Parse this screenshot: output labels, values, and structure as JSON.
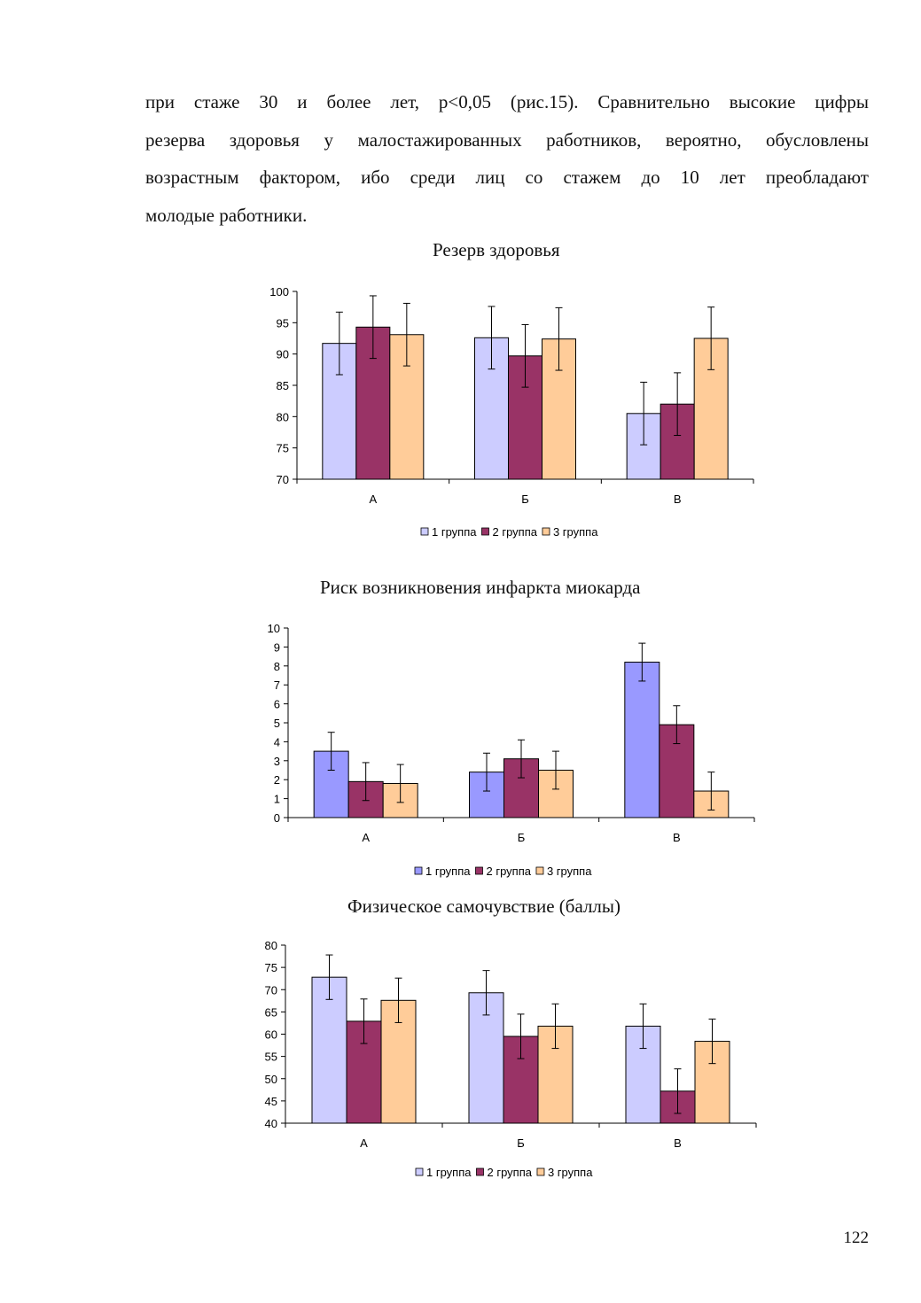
{
  "text": {
    "lines": [
      "при стаже 30 и более лет, р<0,05 (рис.15). Сравнительно высокие цифры",
      "резерва здоровья у малостажированных работников, вероятно, обусловлены",
      "возрастным фактором, ибо среди лиц со стажем до 10 лет преобладают",
      "молодые работники."
    ]
  },
  "page_number": "122",
  "colors": {
    "group1_light": "#ccccff",
    "group1_blue": "#9999ff",
    "group2": "#993366",
    "group3": "#ffcc99"
  },
  "chart_data": [
    {
      "type": "bar",
      "title": "Резерв здоровья",
      "categories": [
        "А",
        "Б",
        "В"
      ],
      "ylim": [
        70,
        100
      ],
      "ytick_step": 5,
      "yticks": [
        "70",
        "75",
        "80",
        "85",
        "90",
        "95",
        "100"
      ],
      "legend_position": "bottom",
      "series": [
        {
          "name": "1 группа",
          "color": "#ccccff",
          "values": [
            91.7,
            92.6,
            80.5
          ],
          "errors": [
            5,
            5,
            5
          ]
        },
        {
          "name": "2 группа",
          "color": "#993366",
          "values": [
            94.3,
            89.7,
            82.0
          ],
          "errors": [
            5,
            5,
            5
          ]
        },
        {
          "name": "3 группа",
          "color": "#ffcc99",
          "values": [
            93.1,
            92.4,
            92.5
          ],
          "errors": [
            5,
            5,
            5
          ]
        }
      ]
    },
    {
      "type": "bar",
      "title": "Риск возникновения инфаркта миокарда",
      "categories": [
        "А",
        "Б",
        "В"
      ],
      "ylim": [
        0,
        10
      ],
      "ytick_step": 1,
      "yticks": [
        "0",
        "1",
        "2",
        "3",
        "4",
        "5",
        "6",
        "7",
        "8",
        "9",
        "10"
      ],
      "legend_position": "bottom",
      "series": [
        {
          "name": "1 группа",
          "color": "#9999ff",
          "values": [
            3.5,
            2.4,
            8.2
          ],
          "errors": [
            1,
            1,
            1
          ]
        },
        {
          "name": "2 группа",
          "color": "#993366",
          "values": [
            1.9,
            3.1,
            4.9
          ],
          "errors": [
            1,
            1,
            1
          ]
        },
        {
          "name": "3 группа",
          "color": "#ffcc99",
          "values": [
            1.8,
            2.5,
            1.4
          ],
          "errors": [
            1,
            1,
            1
          ]
        }
      ]
    },
    {
      "type": "bar",
      "title": "Физическое самочувствие (баллы)",
      "categories": [
        "А",
        "Б",
        "В"
      ],
      "ylim": [
        40,
        80
      ],
      "ytick_step": 5,
      "yticks": [
        "40",
        "45",
        "50",
        "55",
        "60",
        "65",
        "70",
        "75",
        "80"
      ],
      "legend_position": "bottom",
      "series": [
        {
          "name": "1 группа",
          "color": "#ccccff",
          "values": [
            72.8,
            69.3,
            61.8
          ],
          "errors": [
            5,
            5,
            5
          ]
        },
        {
          "name": "2 группа",
          "color": "#993366",
          "values": [
            62.9,
            59.5,
            47.2
          ],
          "errors": [
            5,
            5,
            5
          ]
        },
        {
          "name": "3 группа",
          "color": "#ffcc99",
          "values": [
            67.6,
            61.8,
            58.4
          ],
          "errors": [
            5,
            5,
            5
          ]
        }
      ]
    }
  ]
}
